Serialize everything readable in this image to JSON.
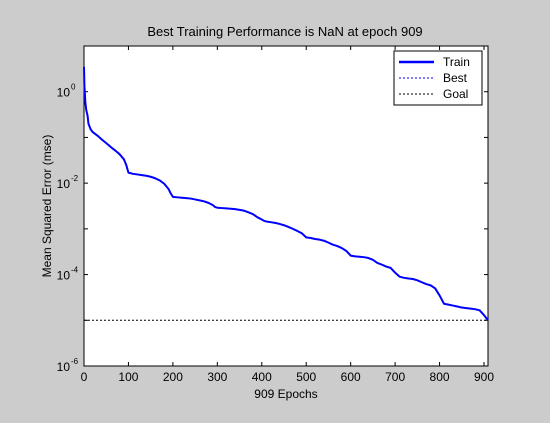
{
  "colors": {
    "figure_background": "#cccccc",
    "plot_background": "#ffffff",
    "train_line": "#0000ff",
    "best_line": "#0000ff",
    "goal_line": "#000000"
  },
  "chart_data": {
    "type": "line",
    "title": "Best Training Performance is NaN at epoch 909",
    "xlabel": "909 Epochs",
    "ylabel": "Mean Squared Error  (mse)",
    "xlim": [
      0,
      909
    ],
    "ylim": [
      1e-06,
      10
    ],
    "yscale": "log",
    "grid": false,
    "legend_position": "top-right",
    "x_ticks": [
      {
        "value": 0,
        "label": "0"
      },
      {
        "value": 100,
        "label": "100"
      },
      {
        "value": 200,
        "label": "200"
      },
      {
        "value": 300,
        "label": "300"
      },
      {
        "value": 400,
        "label": "400"
      },
      {
        "value": 500,
        "label": "500"
      },
      {
        "value": 600,
        "label": "600"
      },
      {
        "value": 700,
        "label": "700"
      },
      {
        "value": 800,
        "label": "800"
      },
      {
        "value": 900,
        "label": "900"
      }
    ],
    "y_ticks": [
      {
        "value": 1,
        "base": "10",
        "exponent": "0"
      },
      {
        "value": 0.01,
        "base": "10",
        "exponent": "-2"
      },
      {
        "value": 0.0001,
        "base": "10",
        "exponent": "-4"
      },
      {
        "value": 1e-06,
        "base": "10",
        "exponent": "-6"
      }
    ],
    "series": [
      {
        "name": "Train",
        "style": "solid",
        "x": [
          0,
          1,
          2,
          3,
          5,
          8,
          10,
          15,
          20,
          30,
          40,
          50,
          60,
          70,
          80,
          90,
          95,
          100,
          110,
          120,
          130,
          140,
          150,
          160,
          170,
          180,
          190,
          195,
          200,
          210,
          220,
          230,
          240,
          250,
          260,
          270,
          280,
          290,
          295,
          300,
          310,
          320,
          330,
          340,
          350,
          360,
          370,
          380,
          390,
          400,
          405,
          410,
          420,
          430,
          440,
          450,
          460,
          470,
          480,
          490,
          500,
          510,
          520,
          530,
          540,
          550,
          560,
          570,
          580,
          590,
          600,
          610,
          620,
          630,
          640,
          650,
          660,
          670,
          680,
          690,
          700,
          710,
          720,
          730,
          740,
          750,
          760,
          770,
          780,
          790,
          800,
          810,
          820,
          830,
          840,
          850,
          860,
          870,
          880,
          890,
          900,
          909
        ],
        "values": [
          3.5,
          1.3,
          0.9,
          0.6,
          0.4,
          0.3,
          0.2,
          0.15,
          0.13,
          0.11,
          0.09,
          0.075,
          0.062,
          0.052,
          0.043,
          0.033,
          0.025,
          0.017,
          0.016,
          0.0155,
          0.015,
          0.0145,
          0.0138,
          0.0128,
          0.0115,
          0.0098,
          0.0075,
          0.006,
          0.005,
          0.0049,
          0.0048,
          0.0047,
          0.0046,
          0.0044,
          0.0042,
          0.004,
          0.0037,
          0.0033,
          0.003,
          0.0029,
          0.00285,
          0.0028,
          0.00275,
          0.0027,
          0.0026,
          0.0025,
          0.0023,
          0.0021,
          0.0018,
          0.0016,
          0.0015,
          0.00145,
          0.0014,
          0.00135,
          0.00128,
          0.0012,
          0.0011,
          0.001,
          0.0009,
          0.0008,
          0.00065,
          0.00063,
          0.0006,
          0.00058,
          0.00055,
          0.0005,
          0.00045,
          0.00042,
          0.00038,
          0.00033,
          0.00026,
          0.00025,
          0.000245,
          0.00024,
          0.00023,
          0.00021,
          0.00018,
          0.000165,
          0.00015,
          0.00014,
          0.00011,
          9e-05,
          8.5e-05,
          8.2e-05,
          8e-05,
          7.5e-05,
          6.8e-05,
          6.2e-05,
          5.8e-05,
          5e-05,
          3.5e-05,
          2.3e-05,
          2.2e-05,
          2.1e-05,
          2e-05,
          1.9e-05,
          1.85e-05,
          1.8e-05,
          1.75e-05,
          1.65e-05,
          1.3e-05,
          1e-05
        ]
      },
      {
        "name": "Best",
        "style": "dotted",
        "x": [],
        "values": []
      },
      {
        "name": "Goal",
        "style": "dotted",
        "x": [
          0,
          909
        ],
        "values": [
          1e-05,
          1e-05
        ]
      }
    ]
  }
}
